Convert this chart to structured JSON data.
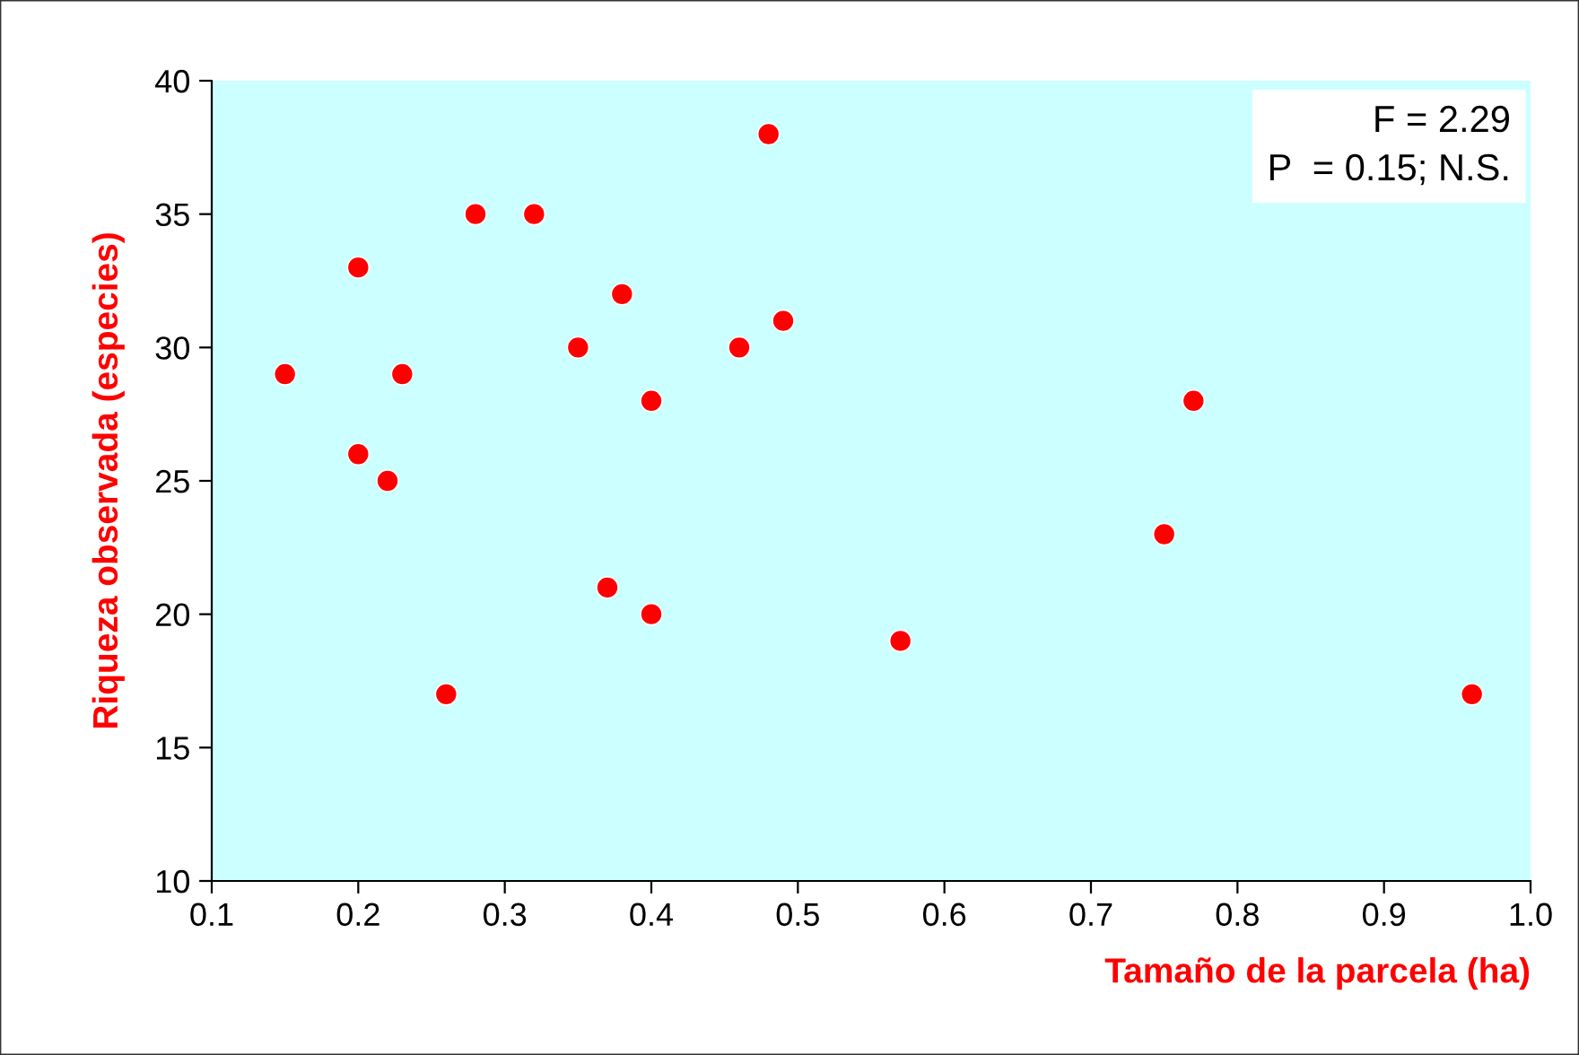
{
  "chart_data": {
    "type": "scatter",
    "xlabel": "Tamaño de la parcela (ha)",
    "ylabel": "Riqueza observada (especies)",
    "annotations": [
      "F = 2.29",
      "P  = 0.15; N.S."
    ],
    "x": [
      0.15,
      0.2,
      0.2,
      0.22,
      0.23,
      0.26,
      0.28,
      0.32,
      0.35,
      0.38,
      0.37,
      0.4,
      0.4,
      0.46,
      0.48,
      0.49,
      0.57,
      0.75,
      0.77,
      0.96
    ],
    "series": [
      {
        "color": "#ff0000",
        "values": [
          29,
          33,
          26,
          25,
          29,
          17,
          35,
          35,
          30,
          32,
          21,
          28,
          20,
          30,
          38,
          31,
          19,
          23,
          28,
          17
        ]
      }
    ],
    "xlim": [
      0.1,
      1.0
    ],
    "xticks": [
      {
        "value": 0.1,
        "label": "0.1"
      },
      {
        "value": 0.2,
        "label": "0.2"
      },
      {
        "value": 0.3,
        "label": "0.3"
      },
      {
        "value": 0.4,
        "label": "0.4"
      },
      {
        "value": 0.5,
        "label": "0.5"
      },
      {
        "value": 0.6,
        "label": "0.6"
      },
      {
        "value": 0.7,
        "label": "0.7"
      },
      {
        "value": 0.8,
        "label": "0.8"
      },
      {
        "value": 0.9,
        "label": "0.9"
      },
      {
        "value": 1.0,
        "label": "1.0"
      }
    ],
    "ylim": [
      10,
      40
    ],
    "yticks": [
      10,
      15,
      20,
      25,
      30,
      35,
      40
    ],
    "grid": false,
    "legend": false,
    "marker": "circle"
  }
}
